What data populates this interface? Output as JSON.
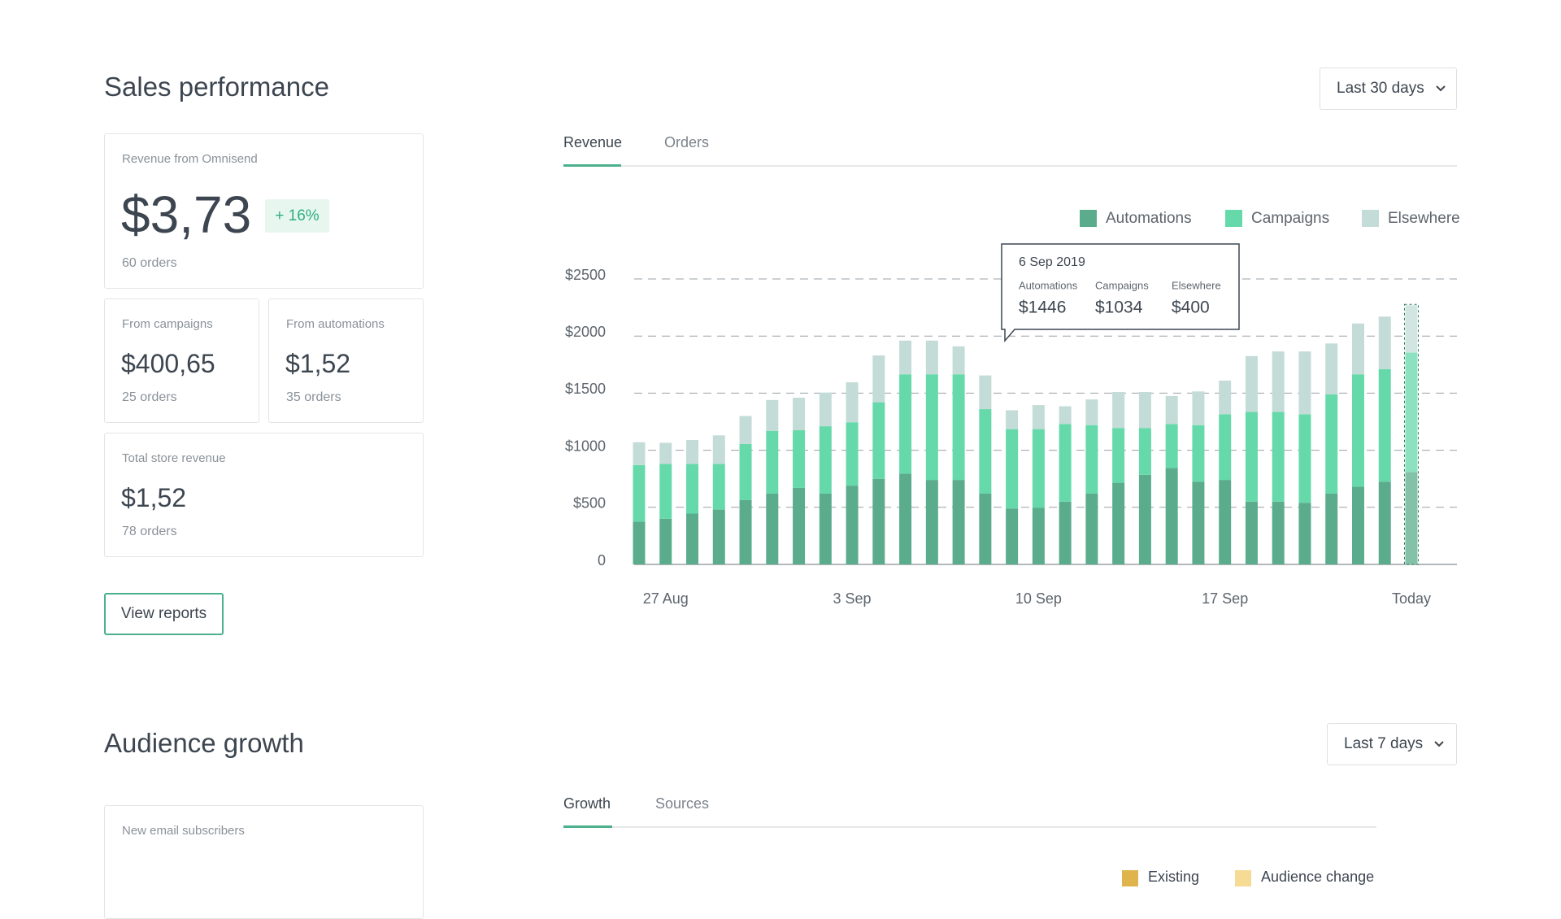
{
  "ui": {
    "sales_title": "Sales performance",
    "sales_range": "Last 30 days",
    "cards": [
      {
        "label": "Revenue from Omnisend",
        "value": "$3,73",
        "badge": "+ 16%",
        "orders": "60 orders"
      },
      {
        "label": "From campaigns",
        "value": "$400,65",
        "orders": "25 orders"
      },
      {
        "label": "From automations",
        "value": "$1,52",
        "orders": "35 orders"
      },
      {
        "label": "Total store revenue",
        "value": "$1,52",
        "orders": "78 orders"
      }
    ],
    "button": "View reports",
    "tabs": [
      "Revenue",
      "Orders"
    ],
    "audience_title": "Audience growth",
    "audience_range": "Last 7 days",
    "audience_tabs": [
      "Growth",
      "Sources"
    ],
    "audience_card_label": "New email subscribers",
    "audience_legend": [
      "Existing",
      "Audience change"
    ]
  },
  "chart_data": {
    "type": "stacked_bar",
    "categories": [
      null,
      "27 Aug",
      null,
      null,
      null,
      null,
      null,
      null,
      "3 Sep",
      null,
      null,
      null,
      null,
      null,
      null,
      "10 Sep",
      null,
      null,
      null,
      null,
      null,
      null,
      "17 Sep",
      null,
      null,
      null,
      null,
      null,
      null,
      "Today"
    ],
    "series": [
      {
        "name": "Automations",
        "color": "#5aac8c",
        "values": [
          375,
          400,
          445,
          480,
          565,
          620,
          670,
          620,
          690,
          750,
          795,
          740,
          740,
          620,
          490,
          495,
          550,
          620,
          715,
          785,
          845,
          725,
          740,
          550,
          550,
          540,
          620,
          680,
          725,
          810
        ]
      },
      {
        "name": "Campaigns",
        "color": "#66d9ab",
        "values": [
          495,
          480,
          435,
          400,
          490,
          550,
          505,
          590,
          555,
          670,
          870,
          925,
          925,
          740,
          695,
          690,
          680,
          600,
          480,
          410,
          385,
          495,
          575,
          785,
          785,
          775,
          870,
          985,
          985,
          1045
        ]
      },
      {
        "name": "Elsewhere",
        "color": "#c3dcd7",
        "values": [
          200,
          185,
          210,
          250,
          245,
          270,
          285,
          295,
          350,
          410,
          295,
          295,
          245,
          295,
          165,
          210,
          155,
          225,
          315,
          315,
          245,
          295,
          295,
          490,
          530,
          550,
          445,
          445,
          460,
          415
        ]
      }
    ],
    "ylim": [
      0,
      2500
    ],
    "yticks": [
      0,
      {
        "value": 500,
        "label": "$500"
      },
      {
        "value": 1000,
        "label": "$1000"
      },
      {
        "value": 1500,
        "label": "$1500"
      },
      {
        "value": 2000,
        "label": "$2000"
      },
      {
        "value": 2500,
        "label": "$2500"
      }
    ],
    "grid": true,
    "legend": "top-right",
    "tooltip": {
      "date": "6 Sep 2019",
      "items": [
        {
          "name": "Automations",
          "value": "$1446"
        },
        {
          "name": "Campaigns",
          "value": "$1034"
        },
        {
          "name": "Elsewhere",
          "value": "$400"
        }
      ]
    }
  }
}
